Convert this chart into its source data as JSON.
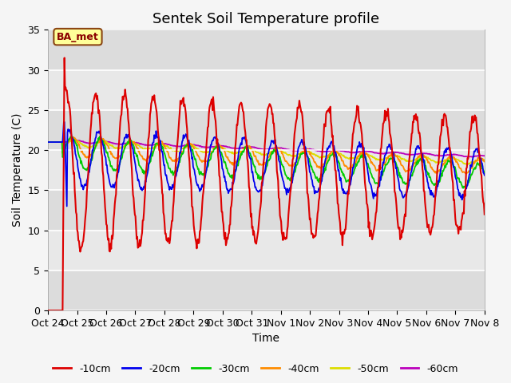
{
  "title": "Sentek Soil Temperature profile",
  "xlabel": "Time",
  "ylabel": "Soil Temperature (C)",
  "ylim": [
    0,
    35
  ],
  "x_tick_labels": [
    "Oct 24",
    "Oct 25",
    "Oct 26",
    "Oct 27",
    "Oct 28",
    "Oct 29",
    "Oct 30",
    "Oct 31",
    "Nov 1",
    "Nov 2",
    "Nov 3",
    "Nov 4",
    "Nov 5",
    "Nov 6",
    "Nov 7",
    "Nov 8"
  ],
  "annotation_text": "BA_met",
  "annotation_bbox_facecolor": "#ffff99",
  "annotation_bbox_edgecolor": "#8B4513",
  "legend_labels": [
    "-10cm",
    "-20cm",
    "-30cm",
    "-40cm",
    "-50cm",
    "-60cm"
  ],
  "line_colors": [
    "#dd0000",
    "#0000ee",
    "#00cc00",
    "#ff8c00",
    "#dddd00",
    "#bb00bb"
  ],
  "fig_bg": "#f5f5f5",
  "plot_bg": "#e8e8e8",
  "grid_color": "#ffffff",
  "title_fontsize": 13,
  "label_fontsize": 10,
  "tick_fontsize": 9,
  "legend_fontsize": 9
}
